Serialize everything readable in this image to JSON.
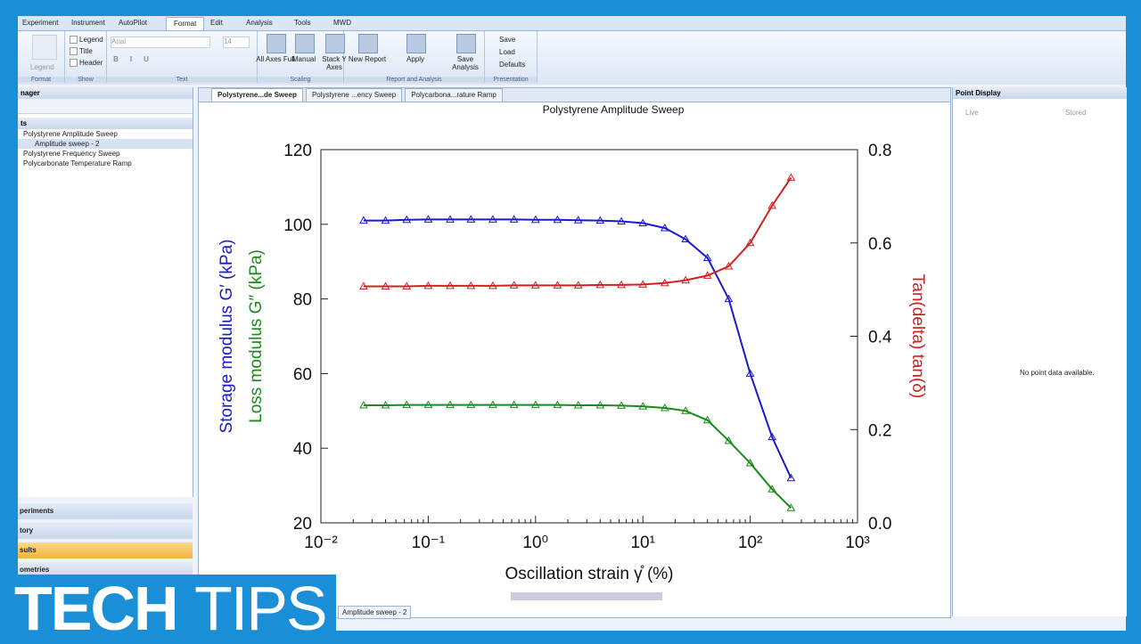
{
  "ribbon": {
    "tabs": [
      "Experiment",
      "Instrument",
      "AutoPilot",
      "Format",
      "Edit",
      "Analysis",
      "Tools",
      "MWD"
    ],
    "legend_button": "Legend",
    "show": [
      "Legend",
      "Title",
      "Header"
    ],
    "font": "Arial",
    "font_size": "14",
    "text_buttons": [
      "B",
      "I",
      "U"
    ],
    "scaling": [
      "All Axes Full",
      "Manual",
      "Stack Y Axes"
    ],
    "report": [
      "New Report",
      "Apply",
      "Save Analysis"
    ],
    "presentation": [
      "Save",
      "Load",
      "Defaults"
    ],
    "groups": [
      "Format",
      "Show",
      "Text",
      "Scaling",
      "Report and Analysis",
      "Presentation"
    ]
  },
  "left_panel": {
    "title": "nager",
    "tree_header": "ts",
    "tree": [
      "Polystyrene Amplitude Sweep",
      "Amplitude sweep - 2",
      "Polystyrene Frequency Sweep",
      "Polycarbonate Temperature Ramp"
    ],
    "sections": [
      "periments",
      "tory",
      "sults",
      "ometries"
    ]
  },
  "doc_tabs": [
    "Polystyrene...de Sweep",
    "Polystyrene ...ency Sweep",
    "Polycarbona...rature Ramp"
  ],
  "bottom_tab": "Amplitude sweep - 2",
  "point_display": {
    "title": "Point Display",
    "options": [
      "Live",
      "Stored"
    ],
    "message": "No point data available."
  },
  "logo": {
    "left": "TECH",
    "right": "TIPS"
  },
  "chart_data": {
    "type": "line",
    "title": "Polystyrene Amplitude Sweep",
    "x_label": "Oscillation strain γ̊ (%)",
    "y_labels": [
      "Storage modulus G′ (kPa)",
      "Loss modulus G″ (kPa)"
    ],
    "y2_label": "Tan(delta) tan(δ)",
    "log_x": true,
    "x": [
      0.025,
      0.04,
      0.063,
      0.1,
      0.16,
      0.25,
      0.4,
      0.63,
      1,
      1.6,
      2.5,
      4,
      6.3,
      10,
      16,
      25,
      40,
      63,
      100,
      160,
      240
    ],
    "series": [
      {
        "name": "Storage modulus G′",
        "color": "#1a1ad0",
        "values": [
          101,
          101,
          101.2,
          101.3,
          101.3,
          101.3,
          101.3,
          101.3,
          101.2,
          101.2,
          101.1,
          101,
          100.8,
          100.3,
          99,
          96,
          91,
          80,
          60,
          43,
          32
        ]
      },
      {
        "name": "Loss modulus G″",
        "color": "#1a8a1a",
        "values": [
          51.5,
          51.5,
          51.6,
          51.6,
          51.6,
          51.6,
          51.6,
          51.6,
          51.6,
          51.6,
          51.5,
          51.5,
          51.4,
          51.2,
          50.8,
          50,
          47.5,
          42,
          36,
          29,
          24
        ]
      },
      {
        "name": "Tan(delta)",
        "color": "#d02020",
        "axis": "y2",
        "values": [
          0.507,
          0.507,
          0.507,
          0.508,
          0.508,
          0.508,
          0.508,
          0.509,
          0.509,
          0.509,
          0.509,
          0.51,
          0.51,
          0.511,
          0.514,
          0.52,
          0.53,
          0.55,
          0.6,
          0.68,
          0.74
        ]
      }
    ],
    "xlim": [
      0.01,
      1000
    ],
    "xticks": [
      {
        "value": 0.01,
        "label": "10⁻²"
      },
      {
        "value": 0.1,
        "label": "10⁻¹"
      },
      {
        "value": 1,
        "label": "10⁰"
      },
      {
        "value": 10,
        "label": "10¹"
      },
      {
        "value": 100,
        "label": "10²"
      },
      {
        "value": 1000,
        "label": "10³"
      }
    ],
    "ylim": [
      20,
      120
    ],
    "yticks": [
      20,
      40,
      60,
      80,
      100,
      120
    ],
    "y2lim": [
      0,
      0.8
    ],
    "y2ticks": [
      {
        "value": 0,
        "label": "0.0"
      },
      0.2,
      0.4,
      0.6,
      0.8
    ]
  }
}
